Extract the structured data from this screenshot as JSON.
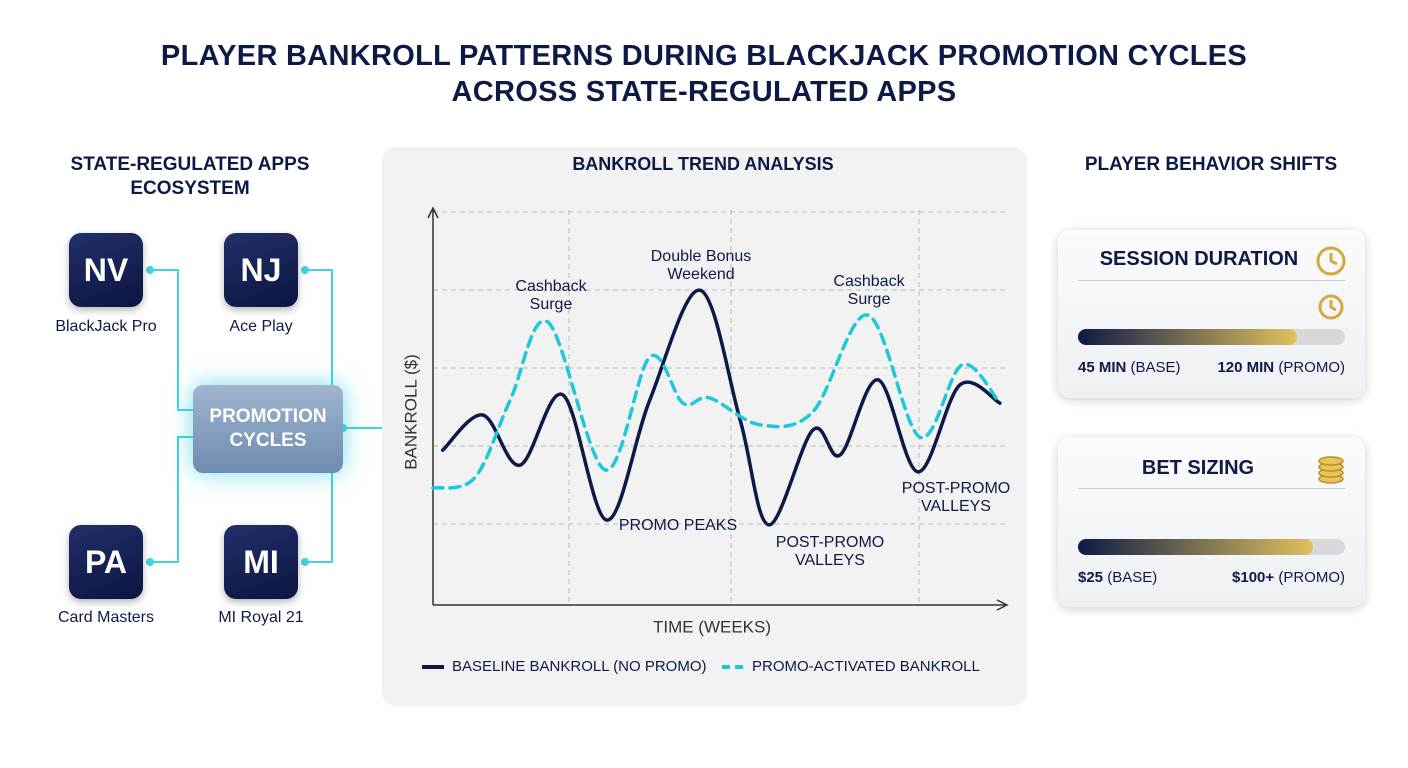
{
  "header": {
    "title": "PLAYER BANKROLL PATTERNS DURING BLACKJACK PROMOTION CYCLES ACROSS STATE-REGULATED APPS"
  },
  "ecosystem": {
    "title": "STATE-REGULATED APPS ECOSYSTEM",
    "hub": "PROMOTION CYCLES",
    "apps": [
      {
        "code": "NV",
        "name": "BlackJack Pro"
      },
      {
        "code": "NJ",
        "name": "Ace Play"
      },
      {
        "code": "PA",
        "name": "Card Masters"
      },
      {
        "code": "MI",
        "name": "MI Royal 21"
      }
    ]
  },
  "chart_data": {
    "type": "line",
    "title": "BANKROLL TREND ANALYSIS",
    "x_label": "TIME (WEEKS)",
    "y_label": "BANKROLL ($)",
    "xlim": [
      0,
      100
    ],
    "ylim": [
      0,
      100
    ],
    "series": [
      {
        "name": "BASELINE BANKROLL (NO PROMO)",
        "color": "#0d1a45",
        "dash": false,
        "x": [
          1.7,
          8.7,
          15.2,
          22.7,
          30.4,
          37.9,
          46.7,
          53.7,
          58.7,
          66.4,
          71.2,
          77.8,
          84.8,
          92.1,
          99.1
        ],
        "values": [
          39.2,
          48.1,
          35.4,
          53.2,
          21.5,
          51.9,
          79.7,
          46.8,
          20.3,
          44.3,
          38.0,
          57.0,
          33.7,
          55.7,
          51.1
        ]
      },
      {
        "name": "PROMO-ACTIVATED BANKROLL",
        "color": "#1ec8d8",
        "dash": true,
        "x": [
          0,
          7.3,
          13.5,
          20.1,
          30.1,
          37.9,
          43.7,
          48.4,
          57.2,
          66.4,
          76.0,
          85.1,
          92.5,
          99.1
        ],
        "values": [
          29.6,
          32.2,
          51.9,
          71.6,
          34.2,
          62.8,
          51.1,
          52.4,
          45.6,
          48.9,
          73.4,
          42.5,
          60.8,
          51.1
        ]
      }
    ],
    "annotations": [
      "Cashback\nSurge",
      "Double Bonus\nWeekend",
      "Cashback\nSurge",
      "PROMO PEAKS",
      "POST-PROMO\nVALLEYS",
      "POST-PROMO\nVALLEYS"
    ]
  },
  "behavior": {
    "title": "PLAYER BEHAVIOR SHIFTS",
    "cards": [
      {
        "title": "SESSION DURATION",
        "base": "45 MIN",
        "base_note": "(BASE)",
        "promo": "120 MIN",
        "promo_note": "(PROMO)"
      },
      {
        "title": "BET SIZING",
        "base": "$25",
        "base_note": "(BASE)",
        "promo": "$100+",
        "promo_note": "(PROMO)"
      }
    ]
  }
}
